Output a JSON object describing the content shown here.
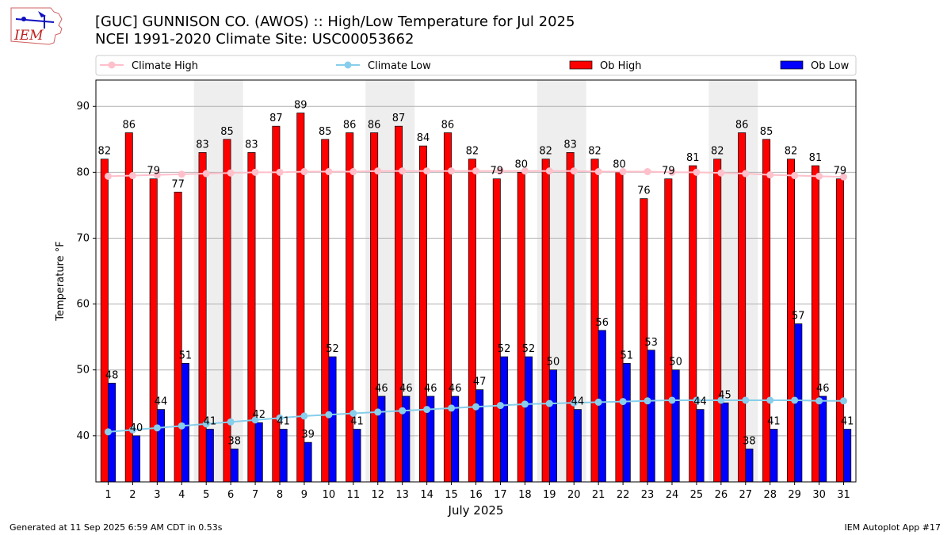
{
  "header": {
    "title": "[GUC] GUNNISON CO. (AWOS) :: High/Low Temperature for Jul 2025",
    "subtitle": "NCEI 1991-2020 Climate Site: USC00053662",
    "logo_text": "IEM"
  },
  "footer": {
    "generated": "Generated at 11 Sep 2025 6:59 AM CDT in 0.53s",
    "app": "IEM Autoplot App #17"
  },
  "chart_data": {
    "type": "bar",
    "xlabel": "July 2025",
    "ylabel": "Temperature °F",
    "ylim": [
      33,
      94
    ],
    "yticks": [
      40,
      50,
      60,
      70,
      80,
      90
    ],
    "grid": "horizontal",
    "legend_position": "top",
    "x": [
      1,
      2,
      3,
      4,
      5,
      6,
      7,
      8,
      9,
      10,
      11,
      12,
      13,
      14,
      15,
      16,
      17,
      18,
      19,
      20,
      21,
      22,
      23,
      24,
      25,
      26,
      27,
      28,
      29,
      30,
      31
    ],
    "weekend_bands": [
      [
        5,
        6
      ],
      [
        12,
        13
      ],
      [
        19,
        20
      ],
      [
        26,
        27
      ]
    ],
    "series": [
      {
        "name": "Climate High",
        "kind": "line",
        "color": "#ffc0cb",
        "values": [
          79.4,
          79.5,
          79.6,
          79.7,
          79.8,
          79.9,
          80.0,
          80.0,
          80.1,
          80.1,
          80.1,
          80.2,
          80.2,
          80.2,
          80.2,
          80.2,
          80.2,
          80.2,
          80.2,
          80.2,
          80.1,
          80.1,
          80.1,
          80.0,
          80.0,
          79.9,
          79.8,
          79.6,
          79.5,
          79.4,
          79.3
        ]
      },
      {
        "name": "Climate Low",
        "kind": "line",
        "color": "#87ceeb",
        "values": [
          40.6,
          40.9,
          41.2,
          41.5,
          41.8,
          42.1,
          42.4,
          42.7,
          43.0,
          43.2,
          43.4,
          43.6,
          43.8,
          44.0,
          44.2,
          44.4,
          44.6,
          44.8,
          44.9,
          45.0,
          45.1,
          45.2,
          45.3,
          45.4,
          45.4,
          45.4,
          45.4,
          45.4,
          45.4,
          45.3,
          45.3
        ]
      },
      {
        "name": "Ob High",
        "kind": "bar",
        "color": "#ff0000",
        "values": [
          82,
          86,
          79,
          77,
          83,
          85,
          83,
          87,
          89,
          85,
          86,
          86,
          87,
          84,
          86,
          82,
          79,
          80,
          82,
          83,
          82,
          80,
          76,
          79,
          81,
          82,
          86,
          85,
          82,
          81,
          79
        ]
      },
      {
        "name": "Ob Low",
        "kind": "bar",
        "color": "#0000ff",
        "values": [
          48,
          40,
          44,
          51,
          41,
          38,
          42,
          41,
          39,
          52,
          41,
          46,
          46,
          46,
          46,
          47,
          52,
          52,
          50,
          44,
          56,
          51,
          53,
          50,
          44,
          45,
          38,
          41,
          57,
          46,
          41
        ]
      }
    ]
  }
}
